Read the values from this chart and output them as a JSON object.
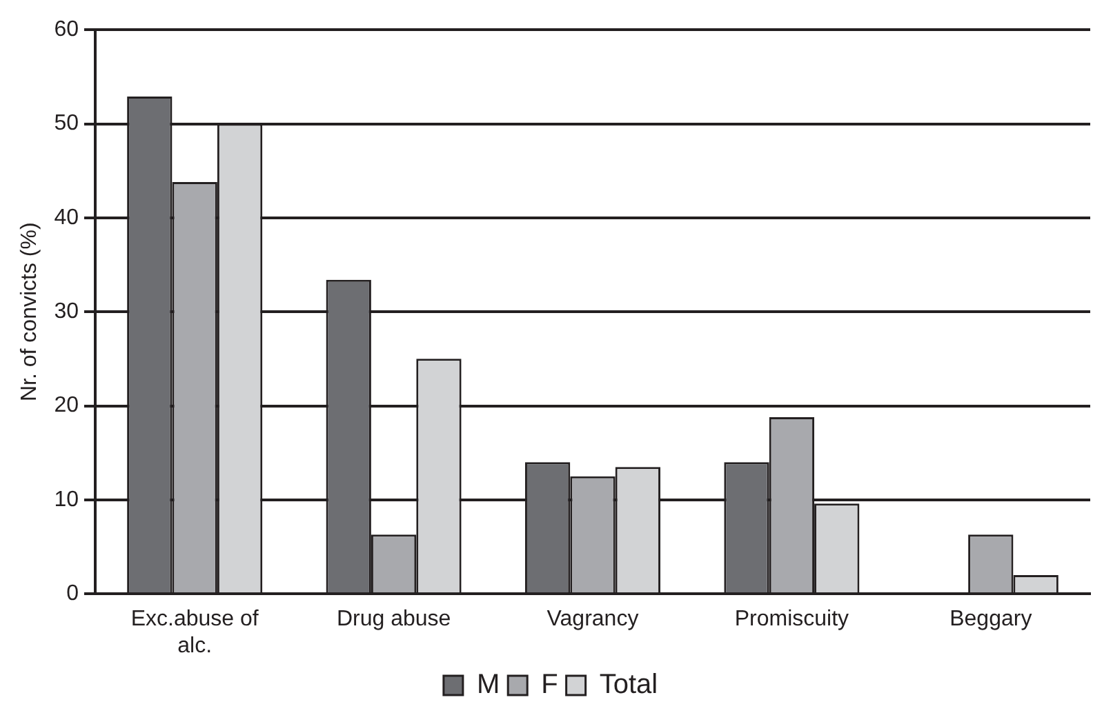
{
  "chart_data": {
    "type": "bar",
    "ylabel": "Nr. of convicts (%)",
    "categories": [
      "Exc.abuse of alc.",
      "Drug abuse",
      "Vagrancy",
      "Promiscuity",
      "Beggary"
    ],
    "series": [
      {
        "name": "M",
        "color": "#6d6e72",
        "values": [
          52.9,
          33.4,
          14.0,
          14.0,
          0
        ]
      },
      {
        "name": "F",
        "color": "#a8a9ad",
        "values": [
          43.8,
          6.3,
          12.5,
          18.8,
          6.3
        ]
      },
      {
        "name": "Total",
        "color": "#d2d3d5",
        "values": [
          50,
          25,
          13.5,
          9.6,
          2.0
        ]
      }
    ],
    "ylim": [
      0,
      60
    ],
    "yticks": [
      0,
      10,
      20,
      30,
      40,
      50,
      60
    ],
    "grid": "y",
    "legend": "bottom"
  }
}
